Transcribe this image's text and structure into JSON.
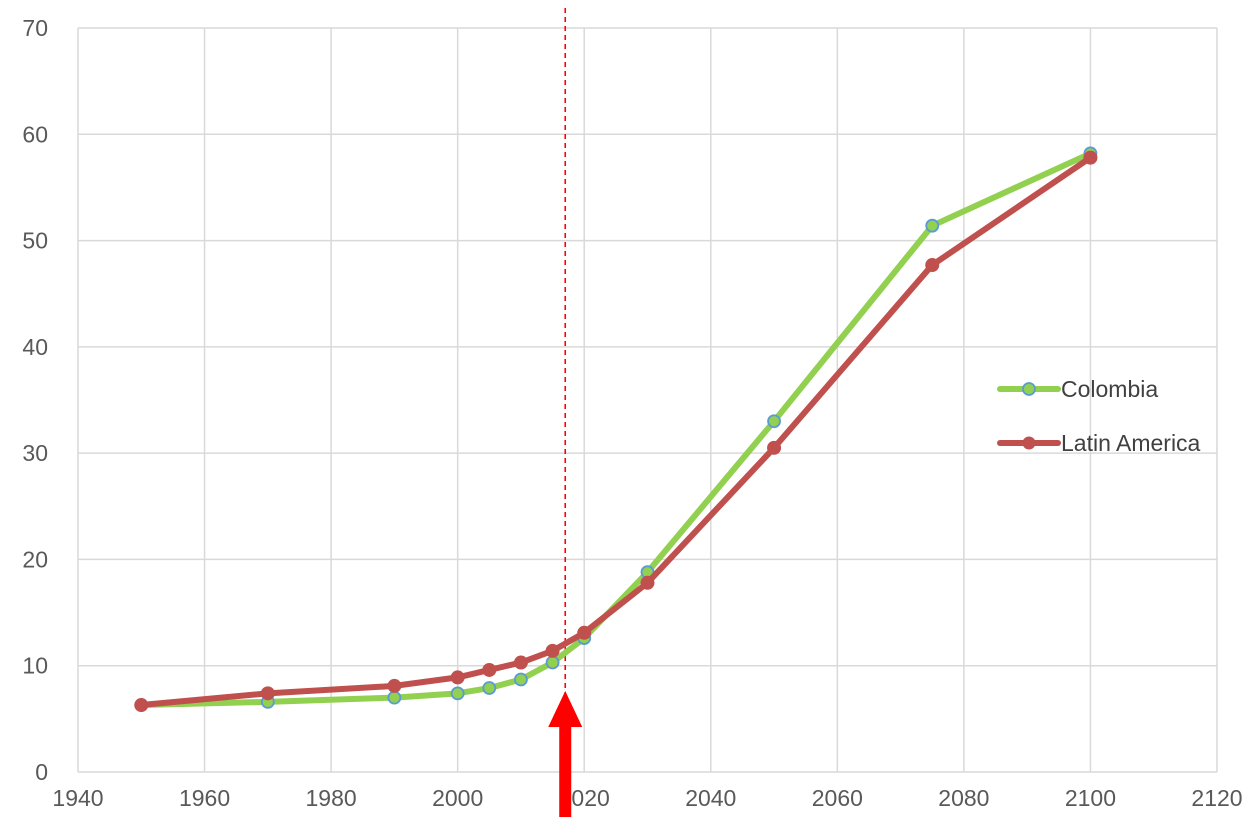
{
  "chart_data": {
    "type": "line",
    "title": "",
    "xlabel": "",
    "ylabel": "",
    "xlim": [
      1940,
      2120
    ],
    "ylim": [
      0,
      70
    ],
    "x_ticks": [
      1940,
      1960,
      1980,
      2000,
      2020,
      2040,
      2060,
      2080,
      2100,
      2120
    ],
    "y_ticks": [
      0,
      10,
      20,
      30,
      40,
      50,
      60,
      70
    ],
    "grid": true,
    "legend_position": "right",
    "series": [
      {
        "name": "Colombia",
        "color": "#92D050",
        "marker_fill": "#5B9BD5",
        "points": [
          {
            "x": 1950,
            "y": 6.3
          },
          {
            "x": 1970,
            "y": 6.6
          },
          {
            "x": 1990,
            "y": 7.0
          },
          {
            "x": 2000,
            "y": 7.4
          },
          {
            "x": 2005,
            "y": 7.9
          },
          {
            "x": 2010,
            "y": 8.7
          },
          {
            "x": 2015,
            "y": 10.3
          },
          {
            "x": 2020,
            "y": 12.6
          },
          {
            "x": 2030,
            "y": 18.8
          },
          {
            "x": 2050,
            "y": 33.0
          },
          {
            "x": 2075,
            "y": 51.4
          },
          {
            "x": 2100,
            "y": 58.2
          }
        ]
      },
      {
        "name": "Latin America",
        "color": "#C0504D",
        "marker_fill": "#C0504D",
        "points": [
          {
            "x": 1950,
            "y": 6.3
          },
          {
            "x": 1970,
            "y": 7.4
          },
          {
            "x": 1990,
            "y": 8.1
          },
          {
            "x": 2000,
            "y": 8.9
          },
          {
            "x": 2005,
            "y": 9.6
          },
          {
            "x": 2010,
            "y": 10.3
          },
          {
            "x": 2015,
            "y": 11.4
          },
          {
            "x": 2020,
            "y": 13.1
          },
          {
            "x": 2030,
            "y": 17.8
          },
          {
            "x": 2050,
            "y": 30.5
          },
          {
            "x": 2075,
            "y": 47.7
          },
          {
            "x": 2100,
            "y": 57.8
          }
        ]
      }
    ],
    "annotations": {
      "reference_line_x": 2017,
      "reference_line_color": "#FF0000",
      "arrow_x": 2017,
      "arrow_color": "#FF0000"
    }
  }
}
